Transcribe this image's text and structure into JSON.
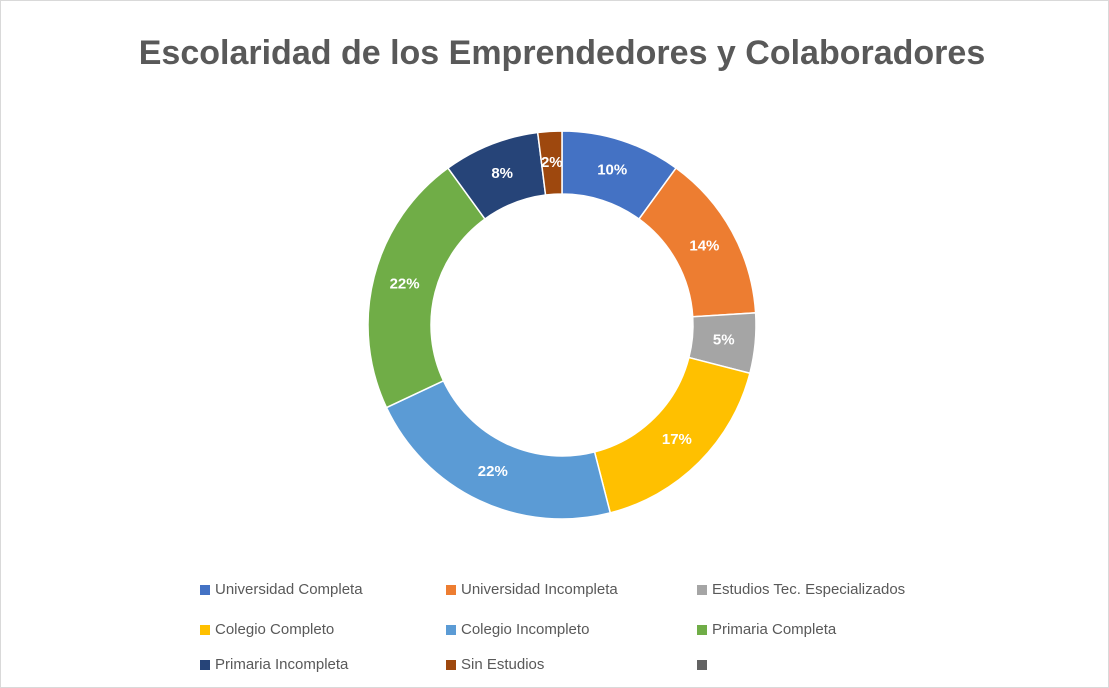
{
  "chart_data": {
    "type": "donut",
    "title": "Escolaridad de los Emprendedores y Colaboradores",
    "categories": [
      "Universidad Completa",
      "Universidad Incompleta",
      "Estudios Tec. Especializados",
      "Colegio Completo",
      "Colegio Incompleto",
      "Primaria Completa",
      "Primaria Incompleta",
      "Sin Estudios",
      null
    ],
    "values": [
      10,
      14,
      5,
      17,
      22,
      22,
      8,
      2,
      0
    ],
    "value_labels": [
      "10%",
      "14%",
      "5%",
      "17%",
      "22%",
      "22%",
      "8%",
      "2%",
      null
    ],
    "colors": [
      "#4472c4",
      "#ed7d31",
      "#a5a5a5",
      "#ffc000",
      "#5b9bd5",
      "#70ad47",
      "#264478",
      "#9e480e",
      "#636363"
    ],
    "legend": "bottom"
  }
}
